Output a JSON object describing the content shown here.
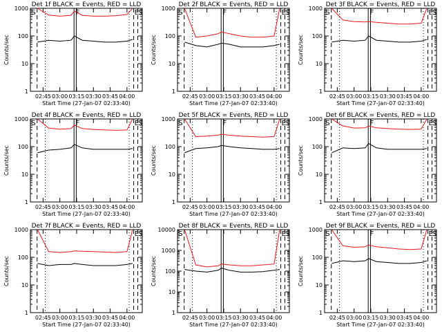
{
  "chart_data": [
    {
      "type": "line",
      "title": "Det 1f BLACK = Events, RED = LLD",
      "xlabel": "Start Time (27-Jan-07 02:33:40)",
      "ylabel": "Counts/sec",
      "yscale": "log",
      "ylim": [
        1,
        1000
      ],
      "xlim": [
        "02:33:40",
        "04:13:40"
      ],
      "x_ticks": [
        "02:45",
        "03:00",
        "03:15",
        "03:30",
        "03:45",
        "04:00"
      ],
      "y_ticks": [
        "1",
        "10",
        "100",
        "1000"
      ],
      "markers": [
        {
          "label": "S",
          "time": "02:33:50"
        },
        {
          "label": "F",
          "time": "03:13:30"
        },
        {
          "label": "E",
          "time": "04:06:00"
        },
        {
          "label": "S",
          "time": "04:09:20"
        }
      ],
      "vlines_dashed": [
        "02:39:40",
        "04:06:00",
        "04:09:40"
      ],
      "vlines_dotted": [
        "02:47:00",
        "04:02:00"
      ],
      "vlines_solid": [
        "03:12:40",
        "03:14:40"
      ],
      "x": [
        "02:40",
        "02:50",
        "03:00",
        "03:10",
        "03:13",
        "03:20",
        "03:30",
        "03:40",
        "03:50",
        "04:00",
        "04:05"
      ],
      "series": [
        {
          "color": "#e8141b",
          "values": [
            1000,
            570,
            520,
            560,
            800,
            560,
            520,
            520,
            540,
            600,
            1000
          ]
        },
        {
          "color": "#000000",
          "values": [
            60,
            70,
            65,
            70,
            100,
            70,
            65,
            60,
            60,
            65,
            75
          ]
        }
      ]
    },
    {
      "type": "line",
      "title": "Det 2f BLACK = Events, RED = LLD",
      "xlabel": "Start Time (27-Jan-07 02:33:40)",
      "ylabel": "Counts/sec",
      "yscale": "log",
      "ylim": [
        1,
        1000
      ],
      "xlim": [
        "02:33:40",
        "04:13:40"
      ],
      "x_ticks": [
        "02:45",
        "03:00",
        "03:15",
        "03:30",
        "03:45",
        "04:00"
      ],
      "y_ticks": [
        "1",
        "10",
        "100",
        "1000"
      ],
      "markers": [
        {
          "label": "S",
          "time": "02:33:50"
        },
        {
          "label": "F",
          "time": "03:13:30"
        },
        {
          "label": "E",
          "time": "04:06:00"
        },
        {
          "label": "S",
          "time": "04:09:20"
        }
      ],
      "vlines_dashed": [
        "02:39:40",
        "04:06:00",
        "04:09:40"
      ],
      "vlines_dotted": [
        "02:47:00",
        "04:02:00"
      ],
      "vlines_solid": [
        "03:12:40",
        "03:14:40"
      ],
      "x": [
        "02:40",
        "02:50",
        "03:00",
        "03:10",
        "03:13",
        "03:20",
        "03:30",
        "03:40",
        "03:50",
        "04:00",
        "04:05"
      ],
      "series": [
        {
          "color": "#e8141b",
          "values": [
            1000,
            90,
            100,
            120,
            140,
            120,
            100,
            90,
            90,
            100,
            1000
          ]
        },
        {
          "color": "#000000",
          "values": [
            60,
            45,
            40,
            50,
            55,
            50,
            40,
            40,
            40,
            45,
            50
          ]
        }
      ]
    },
    {
      "type": "line",
      "title": "Det 3f BLACK = Events, RED = LLD",
      "xlabel": "Start Time (27-Jan-07 02:33:40)",
      "ylabel": "Counts/sec",
      "yscale": "log",
      "ylim": [
        1,
        1000
      ],
      "xlim": [
        "02:33:40",
        "04:13:40"
      ],
      "x_ticks": [
        "02:45",
        "03:00",
        "03:15",
        "03:30",
        "03:45",
        "04:00"
      ],
      "y_ticks": [
        "1",
        "10",
        "100",
        "1000"
      ],
      "markers": [
        {
          "label": "S",
          "time": "02:33:50"
        },
        {
          "label": "F",
          "time": "03:13:30"
        },
        {
          "label": "E",
          "time": "04:06:00"
        },
        {
          "label": "S",
          "time": "04:09:20"
        }
      ],
      "vlines_dashed": [
        "02:39:40",
        "04:06:00",
        "04:09:40"
      ],
      "vlines_dotted": [
        "02:47:00",
        "04:02:00"
      ],
      "vlines_solid": [
        "03:12:40",
        "03:14:40"
      ],
      "x": [
        "02:40",
        "02:50",
        "03:00",
        "03:10",
        "03:13",
        "03:20",
        "03:30",
        "03:40",
        "03:50",
        "04:00",
        "04:05"
      ],
      "series": [
        {
          "color": "#e8141b",
          "values": [
            1000,
            380,
            330,
            320,
            330,
            310,
            290,
            270,
            270,
            290,
            1000
          ]
        },
        {
          "color": "#000000",
          "values": [
            60,
            70,
            65,
            70,
            100,
            70,
            65,
            60,
            60,
            65,
            75
          ]
        }
      ]
    },
    {
      "type": "line",
      "title": "Det 4f BLACK = Events, RED = LLD",
      "xlabel": "Start Time (27-Jan-07 02:33:40)",
      "ylabel": "Counts/sec",
      "yscale": "log",
      "ylim": [
        1,
        1000
      ],
      "xlim": [
        "02:33:40",
        "04:13:40"
      ],
      "x_ticks": [
        "02:45",
        "03:00",
        "03:15",
        "03:30",
        "03:45",
        "04:00"
      ],
      "y_ticks": [
        "1",
        "10",
        "100",
        "1000"
      ],
      "markers": [
        {
          "label": "S",
          "time": "02:33:50"
        },
        {
          "label": "F",
          "time": "03:13:30"
        },
        {
          "label": "E",
          "time": "04:06:00"
        },
        {
          "label": "S",
          "time": "04:09:20"
        }
      ],
      "vlines_dashed": [
        "02:39:40",
        "04:06:00",
        "04:09:40"
      ],
      "vlines_dotted": [
        "02:47:00",
        "04:02:00"
      ],
      "vlines_solid": [
        "03:12:40",
        "03:14:40"
      ],
      "x": [
        "02:40",
        "02:50",
        "03:00",
        "03:10",
        "03:13",
        "03:20",
        "03:30",
        "03:40",
        "03:50",
        "04:00",
        "04:05"
      ],
      "series": [
        {
          "color": "#e8141b",
          "values": [
            1000,
            470,
            430,
            450,
            600,
            450,
            420,
            400,
            390,
            400,
            1000
          ]
        },
        {
          "color": "#000000",
          "values": [
            60,
            75,
            80,
            90,
            120,
            90,
            80,
            80,
            80,
            80,
            85
          ]
        }
      ]
    },
    {
      "type": "line",
      "title": "Det 5f BLACK = Events, RED = LLD",
      "xlabel": "Start Time (27-Jan-07 02:33:40)",
      "ylabel": "Counts/sec",
      "yscale": "log",
      "ylim": [
        1,
        1000
      ],
      "xlim": [
        "02:33:40",
        "04:13:40"
      ],
      "x_ticks": [
        "02:45",
        "03:00",
        "03:15",
        "03:30",
        "03:45",
        "04:00"
      ],
      "y_ticks": [
        "1",
        "10",
        "100",
        "1000"
      ],
      "markers": [
        {
          "label": "S",
          "time": "02:33:50"
        },
        {
          "label": "F",
          "time": "03:13:30"
        },
        {
          "label": "E",
          "time": "04:06:00"
        },
        {
          "label": "S",
          "time": "04:09:20"
        }
      ],
      "vlines_dashed": [
        "02:39:40",
        "04:06:00",
        "04:09:40"
      ],
      "vlines_dotted": [
        "02:47:00",
        "04:02:00"
      ],
      "vlines_solid": [
        "03:12:40",
        "03:14:40"
      ],
      "x": [
        "02:40",
        "02:50",
        "03:00",
        "03:10",
        "03:13",
        "03:20",
        "03:30",
        "03:40",
        "03:50",
        "04:00",
        "04:05"
      ],
      "series": [
        {
          "color": "#e8141b",
          "values": [
            1000,
            230,
            240,
            260,
            280,
            260,
            240,
            230,
            220,
            230,
            1000
          ]
        },
        {
          "color": "#000000",
          "values": [
            60,
            85,
            90,
            100,
            110,
            100,
            90,
            85,
            80,
            80,
            85
          ]
        }
      ]
    },
    {
      "type": "line",
      "title": "Det 6f BLACK = Events, RED = LLD",
      "xlabel": "Start Time (27-Jan-07 02:33:40)",
      "ylabel": "Counts/sec",
      "yscale": "log",
      "ylim": [
        1,
        1000
      ],
      "xlim": [
        "02:33:40",
        "04:13:40"
      ],
      "x_ticks": [
        "02:45",
        "03:00",
        "03:15",
        "03:30",
        "03:45",
        "04:00"
      ],
      "y_ticks": [
        "1",
        "10",
        "100",
        "1000"
      ],
      "markers": [
        {
          "label": "S",
          "time": "02:33:50"
        },
        {
          "label": "F",
          "time": "03:13:30"
        },
        {
          "label": "E",
          "time": "04:06:00"
        },
        {
          "label": "S",
          "time": "04:09:20"
        }
      ],
      "vlines_dashed": [
        "02:39:40",
        "04:06:00",
        "04:09:40"
      ],
      "vlines_dotted": [
        "02:47:00",
        "04:02:00"
      ],
      "vlines_solid": [
        "03:12:40",
        "03:14:40"
      ],
      "x": [
        "02:40",
        "02:50",
        "03:00",
        "03:10",
        "03:13",
        "03:20",
        "03:30",
        "03:40",
        "03:50",
        "04:00",
        "04:05"
      ],
      "series": [
        {
          "color": "#e8141b",
          "values": [
            1000,
            560,
            470,
            480,
            560,
            480,
            450,
            430,
            420,
            430,
            1000
          ]
        },
        {
          "color": "#000000",
          "values": [
            60,
            90,
            85,
            90,
            130,
            90,
            80,
            80,
            80,
            80,
            85
          ]
        }
      ]
    },
    {
      "type": "line",
      "title": "Det 7f BLACK = Events, RED = LLD",
      "xlabel": "Start Time (27-Jan-07 02:33:40)",
      "ylabel": "Counts/sec",
      "yscale": "log",
      "ylim": [
        1,
        1000
      ],
      "xlim": [
        "02:33:40",
        "04:13:40"
      ],
      "x_ticks": [
        "02:45",
        "03:00",
        "03:15",
        "03:30",
        "03:45",
        "04:00"
      ],
      "y_ticks": [
        "1",
        "10",
        "100",
        "1000"
      ],
      "markers": [
        {
          "label": "E",
          "time": "04:06:00"
        },
        {
          "label": "S",
          "time": "04:09:20"
        }
      ],
      "vlines_dashed": [
        "02:39:40",
        "04:06:00",
        "04:09:40"
      ],
      "vlines_dotted": [
        "02:47:00",
        "04:02:00"
      ],
      "vlines_solid": [],
      "x": [
        "02:40",
        "02:50",
        "03:00",
        "03:10",
        "03:13",
        "03:20",
        "03:30",
        "03:40",
        "03:50",
        "04:00",
        "04:05"
      ],
      "series": [
        {
          "color": "#e8141b",
          "values": [
            1000,
            160,
            150,
            160,
            170,
            165,
            160,
            155,
            150,
            160,
            1000
          ]
        },
        {
          "color": "#000000",
          "values": [
            60,
            50,
            55,
            55,
            60,
            55,
            50,
            50,
            50,
            55,
            60
          ]
        }
      ]
    },
    {
      "type": "line",
      "title": "Det 8f BLACK = Events, RED = LLD",
      "xlabel": "Start Time (27-Jan-07 02:33:40)",
      "ylabel": "Counts/sec",
      "yscale": "log",
      "ylim": [
        1,
        10000
      ],
      "xlim": [
        "02:33:40",
        "04:13:40"
      ],
      "x_ticks": [
        "02:45",
        "03:00",
        "03:15",
        "03:30",
        "03:45",
        "04:00"
      ],
      "y_ticks": [
        "1",
        "10",
        "100",
        "1000",
        "10000"
      ],
      "markers": [
        {
          "label": "S",
          "time": "02:33:50"
        },
        {
          "label": "E",
          "time": "04:06:00"
        },
        {
          "label": "S",
          "time": "04:09:20"
        }
      ],
      "vlines_dashed": [
        "02:39:40",
        "04:06:00",
        "04:09:40"
      ],
      "vlines_dotted": [
        "02:47:00",
        "04:02:00"
      ],
      "vlines_solid": [
        "03:12:40",
        "03:14:40"
      ],
      "x": [
        "02:40",
        "02:50",
        "03:00",
        "03:10",
        "03:13",
        "03:20",
        "03:30",
        "03:40",
        "03:50",
        "04:00",
        "04:05"
      ],
      "series": [
        {
          "color": "#e8141b",
          "values": [
            10000,
            200,
            160,
            180,
            220,
            200,
            180,
            180,
            200,
            220,
            10000
          ]
        },
        {
          "color": "#000000",
          "values": [
            120,
            100,
            90,
            110,
            140,
            110,
            90,
            90,
            95,
            110,
            120
          ]
        }
      ]
    },
    {
      "type": "line",
      "title": "Det 9f BLACK = Events, RED = LLD",
      "xlabel": "Start Time (27-Jan-07 02:33:40)",
      "ylabel": "Counts/sec",
      "yscale": "log",
      "ylim": [
        1,
        1000
      ],
      "xlim": [
        "02:33:40",
        "04:13:40"
      ],
      "x_ticks": [
        "02:45",
        "03:00",
        "03:15",
        "03:30",
        "03:45",
        "04:00"
      ],
      "y_ticks": [
        "1",
        "10",
        "100",
        "1000"
      ],
      "markers": [
        {
          "label": "S",
          "time": "02:33:50"
        },
        {
          "label": "F",
          "time": "03:13:30"
        },
        {
          "label": "E",
          "time": "04:06:00"
        },
        {
          "label": "S",
          "time": "04:09:20"
        }
      ],
      "vlines_dashed": [
        "02:39:40",
        "04:06:00",
        "04:09:40"
      ],
      "vlines_dotted": [
        "02:47:00",
        "04:02:00"
      ],
      "vlines_solid": [
        "03:12:40",
        "03:14:40"
      ],
      "x": [
        "02:40",
        "02:50",
        "03:00",
        "03:10",
        "03:13",
        "03:20",
        "03:30",
        "03:40",
        "03:50",
        "04:00",
        "04:05"
      ],
      "series": [
        {
          "color": "#e8141b",
          "values": [
            1000,
            260,
            230,
            240,
            280,
            240,
            220,
            200,
            190,
            200,
            1000
          ]
        },
        {
          "color": "#000000",
          "values": [
            60,
            75,
            70,
            75,
            90,
            70,
            65,
            60,
            60,
            65,
            75
          ]
        }
      ]
    }
  ]
}
